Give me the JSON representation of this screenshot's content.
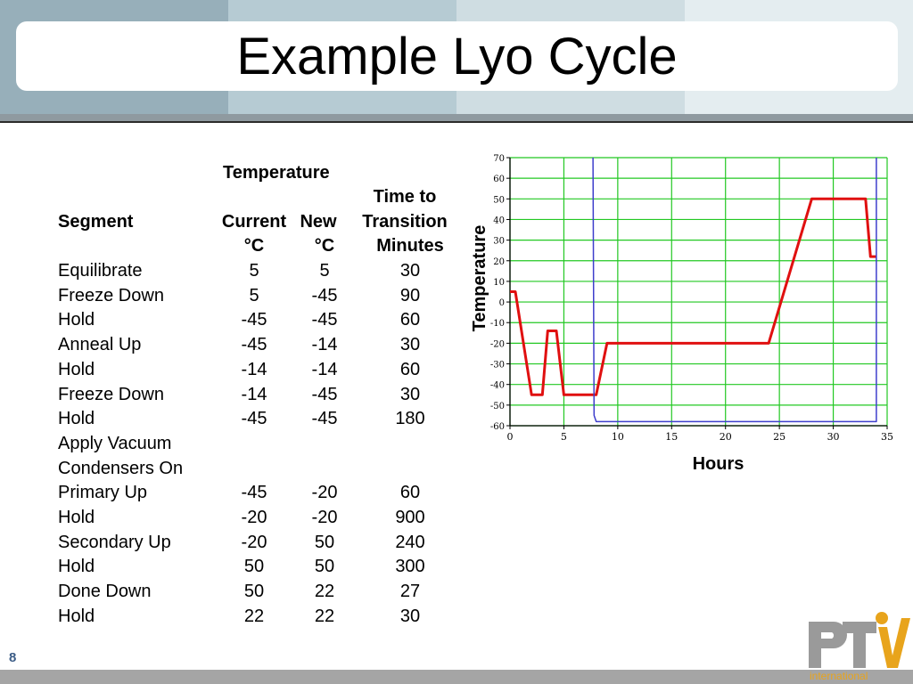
{
  "slide": {
    "title": "Example Lyo Cycle",
    "page_number": "8"
  },
  "table": {
    "headers": {
      "temperature": "Temperature",
      "segment": "Segment",
      "current": "Current",
      "current_unit": "°C",
      "new": "New",
      "new_unit": "°C",
      "time_line1": "Time to",
      "time_line2": "Transition",
      "time_line3": "Minutes"
    },
    "rows": [
      {
        "segment": "Equilibrate",
        "current": "5",
        "new": "5",
        "minutes": "30"
      },
      {
        "segment": "Freeze Down",
        "current": "5",
        "new": "-45",
        "minutes": "90"
      },
      {
        "segment": "Hold",
        "current": "-45",
        "new": "-45",
        "minutes": "60"
      },
      {
        "segment": "Anneal Up",
        "current": "-45",
        "new": "-14",
        "minutes": "30"
      },
      {
        "segment": "Hold",
        "current": "-14",
        "new": "-14",
        "minutes": "60"
      },
      {
        "segment": "Freeze Down",
        "current": "-14",
        "new": "-45",
        "minutes": "30"
      },
      {
        "segment": "Hold",
        "current": "-45",
        "new": "-45",
        "minutes": "180"
      },
      {
        "segment": "Apply Vacuum",
        "current": "",
        "new": "",
        "minutes": ""
      },
      {
        "segment": "Condensers On",
        "current": "",
        "new": "",
        "minutes": ""
      },
      {
        "segment": "Primary Up",
        "current": "-45",
        "new": "-20",
        "minutes": "60"
      },
      {
        "segment": "Hold",
        "current": "-20",
        "new": "-20",
        "minutes": "900"
      },
      {
        "segment": "Secondary Up",
        "current": "-20",
        "new": "50",
        "minutes": "240"
      },
      {
        "segment": "Hold",
        "current": "50",
        "new": "50",
        "minutes": "300"
      },
      {
        "segment": "Done Down",
        "current": "50",
        "new": "22",
        "minutes": "27"
      },
      {
        "segment": "Hold",
        "current": "22",
        "new": "22",
        "minutes": "30"
      }
    ]
  },
  "chart_data": {
    "type": "line",
    "xlabel": "Hours",
    "ylabel": "Temperature",
    "xlim": [
      0,
      35
    ],
    "ylim": [
      -60,
      70
    ],
    "x_ticks": [
      0,
      5,
      10,
      15,
      20,
      25,
      30,
      35
    ],
    "y_ticks": [
      70,
      60,
      50,
      40,
      30,
      20,
      10,
      0,
      -10,
      -20,
      -30,
      -40,
      -50,
      -60
    ],
    "grid": true,
    "series": [
      {
        "color": "#e01010",
        "x": [
          0,
          0.5,
          2,
          3,
          3.5,
          4.3,
          5,
          8,
          9,
          24,
          28,
          33,
          33.45,
          34
        ],
        "y": [
          5,
          5,
          -45,
          -45,
          -14,
          -14,
          -45,
          -45,
          -20,
          -20,
          50,
          50,
          22,
          22
        ]
      },
      {
        "color": "#3e3ecc",
        "x": [
          7.7,
          7.8,
          8,
          34,
          34,
          34
        ],
        "y": [
          70,
          -55,
          -58,
          -58,
          -55,
          70
        ]
      }
    ]
  },
  "logo": {
    "text": "PTi",
    "subtext": "international"
  },
  "colors": {
    "band": [
      "#97afba",
      "#b6cbd3",
      "#cfdde2",
      "#e4edf0"
    ],
    "grid": "#22c822",
    "axis": "#000000",
    "logo_gray": "#9a9a9a",
    "logo_orange": "#e8a41c"
  }
}
